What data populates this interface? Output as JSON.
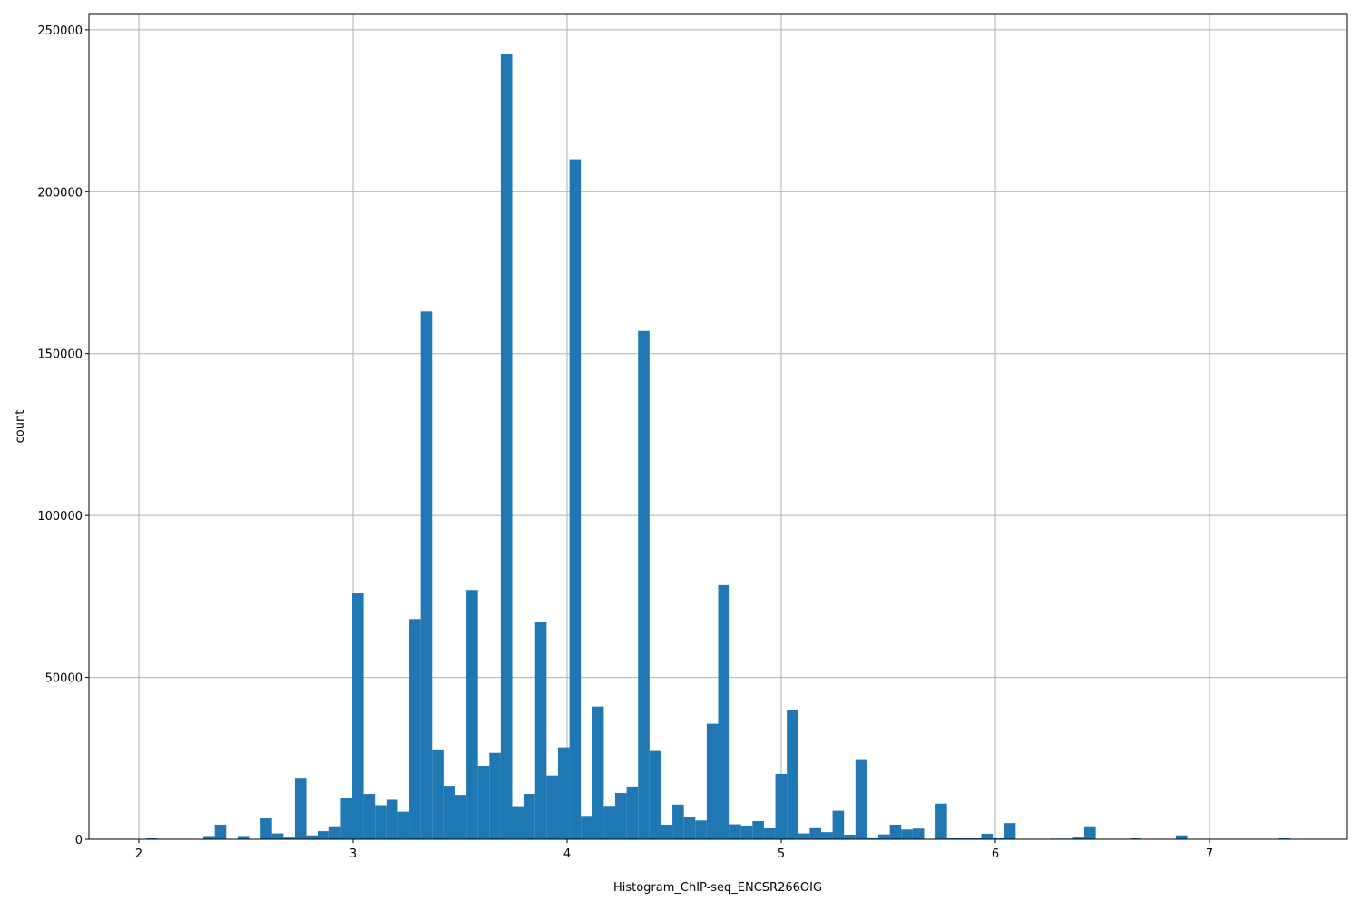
{
  "chart_data": {
    "type": "bar",
    "subtype": "histogram",
    "title": "",
    "xlabel": "Histogram_ChIP-seq_ENCSR266OIG",
    "ylabel": "count",
    "bin_start": 2.034,
    "bin_width": 0.05343,
    "counts": [
      500,
      0,
      0,
      0,
      0,
      1000,
      4500,
      0,
      1000,
      0,
      6500,
      1800,
      800,
      19000,
      1200,
      2500,
      4000,
      12800,
      76000,
      14000,
      10500,
      12200,
      8500,
      68000,
      163000,
      27500,
      16500,
      13700,
      77000,
      22700,
      26700,
      242500,
      10200,
      14000,
      67000,
      19700,
      28400,
      210000,
      7200,
      41000,
      10300,
      14300,
      16300,
      157000,
      27300,
      4500,
      10700,
      7000,
      5800,
      35700,
      78500,
      4600,
      4200,
      5600,
      3400,
      20200,
      40000,
      1800,
      3700,
      2200,
      8800,
      1400,
      24500,
      600,
      1500,
      4500,
      3000,
      3300,
      0,
      11000,
      500,
      500,
      500,
      1700,
      300,
      5000,
      0,
      0,
      0,
      200,
      200,
      800,
      4000,
      0,
      0,
      0,
      300,
      0,
      0,
      0,
      1200,
      0,
      0,
      0,
      0,
      0,
      0,
      0,
      0,
      300
    ],
    "xlim": [
      1.767,
      7.644
    ],
    "ylim": [
      0,
      255000
    ],
    "x_ticks": [
      "2",
      "3",
      "4",
      "5",
      "6",
      "7"
    ],
    "y_ticks": [
      "0",
      "50000",
      "100000",
      "150000",
      "200000",
      "250000"
    ],
    "grid": true,
    "bar_color": "#1f77b4",
    "grid_color": "#b0b0b0"
  }
}
